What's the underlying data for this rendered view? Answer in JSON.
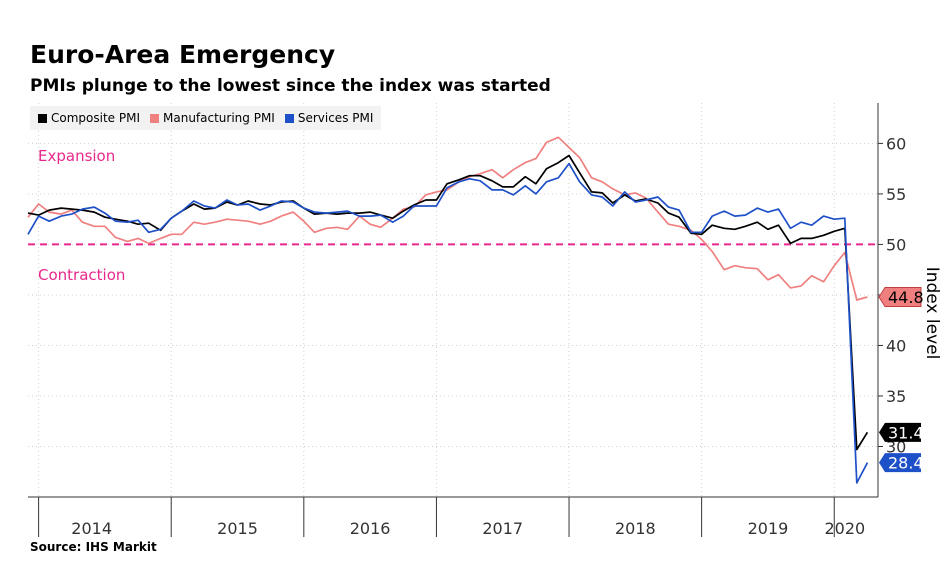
{
  "header": {
    "title": "Euro-Area Emergency",
    "subtitle": "PMIs plunge to the lowest since the index was started"
  },
  "footer": {
    "source": "Source: IHS Markit"
  },
  "annotations": {
    "expansion": "Expansion",
    "contraction": "Contraction",
    "expansion_color": "#e8288c"
  },
  "chart_data": {
    "type": "line",
    "title": "Euro-Area Emergency",
    "subtitle": "PMIs plunge to the lowest since the index was started",
    "ylabel": "Index level",
    "ylim": [
      25,
      64
    ],
    "yticks": [
      30,
      35,
      40,
      45,
      50,
      55,
      60
    ],
    "x_range": [
      2013.92,
      2020.33
    ],
    "year_labels": [
      "2014",
      "2015",
      "2016",
      "2017",
      "2018",
      "2019",
      "2020"
    ],
    "year_label_positions": [
      2014.4,
      2015.5,
      2016.5,
      2017.5,
      2018.5,
      2019.5,
      2020.08
    ],
    "reference_line": {
      "value": 50,
      "color": "#e8288c",
      "style": "dashed"
    },
    "grid": true,
    "legend_position": "top-left",
    "series": [
      {
        "name": "Composite PMI",
        "color": "#000000",
        "end_label": "31.4",
        "x": [
          2013.92,
          2014.0,
          2014.08,
          2014.17,
          2014.25,
          2014.33,
          2014.42,
          2014.5,
          2014.58,
          2014.67,
          2014.75,
          2014.83,
          2014.92,
          2015.0,
          2015.08,
          2015.17,
          2015.25,
          2015.33,
          2015.42,
          2015.5,
          2015.58,
          2015.67,
          2015.75,
          2015.83,
          2015.92,
          2016.0,
          2016.08,
          2016.17,
          2016.25,
          2016.33,
          2016.42,
          2016.5,
          2016.58,
          2016.67,
          2016.75,
          2016.83,
          2016.92,
          2017.0,
          2017.08,
          2017.17,
          2017.25,
          2017.33,
          2017.42,
          2017.5,
          2017.58,
          2017.67,
          2017.75,
          2017.83,
          2017.92,
          2018.0,
          2018.08,
          2018.17,
          2018.25,
          2018.33,
          2018.42,
          2018.5,
          2018.58,
          2018.67,
          2018.75,
          2018.83,
          2018.92,
          2019.0,
          2019.08,
          2019.17,
          2019.25,
          2019.33,
          2019.42,
          2019.5,
          2019.58,
          2019.67,
          2019.75,
          2019.83,
          2019.92,
          2020.0,
          2020.08,
          2020.17,
          2020.25
        ],
        "values": [
          53.1,
          52.9,
          53.4,
          53.6,
          53.5,
          53.4,
          53.2,
          52.7,
          52.5,
          52.3,
          52.0,
          52.1,
          51.4,
          52.6,
          53.3,
          54.0,
          53.5,
          53.6,
          54.2,
          53.9,
          54.3,
          54.0,
          53.9,
          54.2,
          54.3,
          53.6,
          53.0,
          53.1,
          53.0,
          53.1,
          53.1,
          53.2,
          52.9,
          52.6,
          53.3,
          53.9,
          54.4,
          54.4,
          56.0,
          56.4,
          56.8,
          56.8,
          56.3,
          55.7,
          55.7,
          56.7,
          56.0,
          57.5,
          58.1,
          58.8,
          57.1,
          55.2,
          55.1,
          54.1,
          54.9,
          54.3,
          54.5,
          54.1,
          53.1,
          52.7,
          51.1,
          51.0,
          51.9,
          51.6,
          51.5,
          51.8,
          52.2,
          51.5,
          51.9,
          50.1,
          50.6,
          50.6,
          50.9,
          51.3,
          51.6,
          29.7,
          31.4
        ]
      },
      {
        "name": "Manufacturing PMI",
        "color": "#f08080",
        "end_label": "44.8",
        "x": [
          2013.92,
          2014.0,
          2014.08,
          2014.17,
          2014.25,
          2014.33,
          2014.42,
          2014.5,
          2014.58,
          2014.67,
          2014.75,
          2014.83,
          2014.92,
          2015.0,
          2015.08,
          2015.17,
          2015.25,
          2015.33,
          2015.42,
          2015.5,
          2015.58,
          2015.67,
          2015.75,
          2015.83,
          2015.92,
          2016.0,
          2016.08,
          2016.17,
          2016.25,
          2016.33,
          2016.42,
          2016.5,
          2016.58,
          2016.67,
          2016.75,
          2016.83,
          2016.92,
          2017.0,
          2017.08,
          2017.17,
          2017.25,
          2017.33,
          2017.42,
          2017.5,
          2017.58,
          2017.67,
          2017.75,
          2017.83,
          2017.92,
          2018.0,
          2018.08,
          2018.17,
          2018.25,
          2018.33,
          2018.42,
          2018.5,
          2018.58,
          2018.67,
          2018.75,
          2018.83,
          2018.92,
          2019.0,
          2019.08,
          2019.17,
          2019.25,
          2019.33,
          2019.42,
          2019.5,
          2019.58,
          2019.67,
          2019.75,
          2019.83,
          2019.92,
          2020.0,
          2020.08,
          2020.17,
          2020.25
        ],
        "values": [
          52.7,
          54.0,
          53.2,
          53.0,
          53.4,
          52.2,
          51.8,
          51.8,
          50.7,
          50.3,
          50.6,
          50.1,
          50.6,
          51.0,
          51.0,
          52.2,
          52.0,
          52.2,
          52.5,
          52.4,
          52.3,
          52.0,
          52.3,
          52.8,
          53.2,
          52.3,
          51.2,
          51.6,
          51.7,
          51.5,
          52.8,
          52.0,
          51.7,
          52.6,
          53.5,
          53.7,
          54.9,
          55.2,
          55.4,
          56.2,
          56.7,
          57.0,
          57.4,
          56.6,
          57.4,
          58.1,
          58.5,
          60.1,
          60.6,
          59.6,
          58.6,
          56.6,
          56.2,
          55.5,
          54.9,
          55.1,
          54.6,
          53.2,
          52.0,
          51.8,
          51.4,
          50.5,
          49.3,
          47.5,
          47.9,
          47.7,
          47.6,
          46.5,
          47.0,
          45.7,
          45.9,
          46.9,
          46.3,
          47.9,
          49.2,
          44.5,
          44.8
        ]
      },
      {
        "name": "Services PMI",
        "color": "#1e50c8",
        "end_label": "28.4",
        "x": [
          2013.92,
          2014.0,
          2014.08,
          2014.17,
          2014.25,
          2014.33,
          2014.42,
          2014.5,
          2014.58,
          2014.67,
          2014.75,
          2014.83,
          2014.92,
          2015.0,
          2015.08,
          2015.17,
          2015.25,
          2015.33,
          2015.42,
          2015.5,
          2015.58,
          2015.67,
          2015.75,
          2015.83,
          2015.92,
          2016.0,
          2016.08,
          2016.17,
          2016.25,
          2016.33,
          2016.42,
          2016.5,
          2016.58,
          2016.67,
          2016.75,
          2016.83,
          2016.92,
          2017.0,
          2017.08,
          2017.17,
          2017.25,
          2017.33,
          2017.42,
          2017.5,
          2017.58,
          2017.67,
          2017.75,
          2017.83,
          2017.92,
          2018.0,
          2018.08,
          2018.17,
          2018.25,
          2018.33,
          2018.42,
          2018.5,
          2018.58,
          2018.67,
          2018.75,
          2018.83,
          2018.92,
          2019.0,
          2019.08,
          2019.17,
          2019.25,
          2019.33,
          2019.42,
          2019.5,
          2019.58,
          2019.67,
          2019.75,
          2019.83,
          2019.92,
          2020.0,
          2020.08,
          2020.17,
          2020.25
        ],
        "values": [
          51.0,
          52.8,
          52.3,
          52.8,
          53.0,
          53.5,
          53.7,
          53.1,
          52.3,
          52.2,
          52.4,
          51.2,
          51.5,
          52.6,
          53.3,
          54.3,
          53.8,
          53.6,
          54.4,
          53.9,
          54.0,
          53.4,
          53.8,
          54.3,
          54.2,
          53.6,
          53.2,
          53.1,
          53.2,
          53.3,
          52.8,
          52.8,
          52.9,
          52.2,
          52.8,
          53.8,
          53.8,
          53.8,
          55.6,
          56.2,
          56.5,
          56.3,
          55.4,
          55.4,
          54.9,
          55.8,
          55.0,
          56.2,
          56.6,
          58.0,
          56.2,
          54.9,
          54.7,
          53.8,
          55.2,
          54.2,
          54.4,
          54.7,
          53.7,
          53.4,
          51.2,
          51.2,
          52.8,
          53.3,
          52.8,
          52.9,
          53.6,
          53.2,
          53.5,
          51.6,
          52.2,
          51.9,
          52.8,
          52.5,
          52.6,
          26.4,
          28.4
        ]
      }
    ]
  }
}
